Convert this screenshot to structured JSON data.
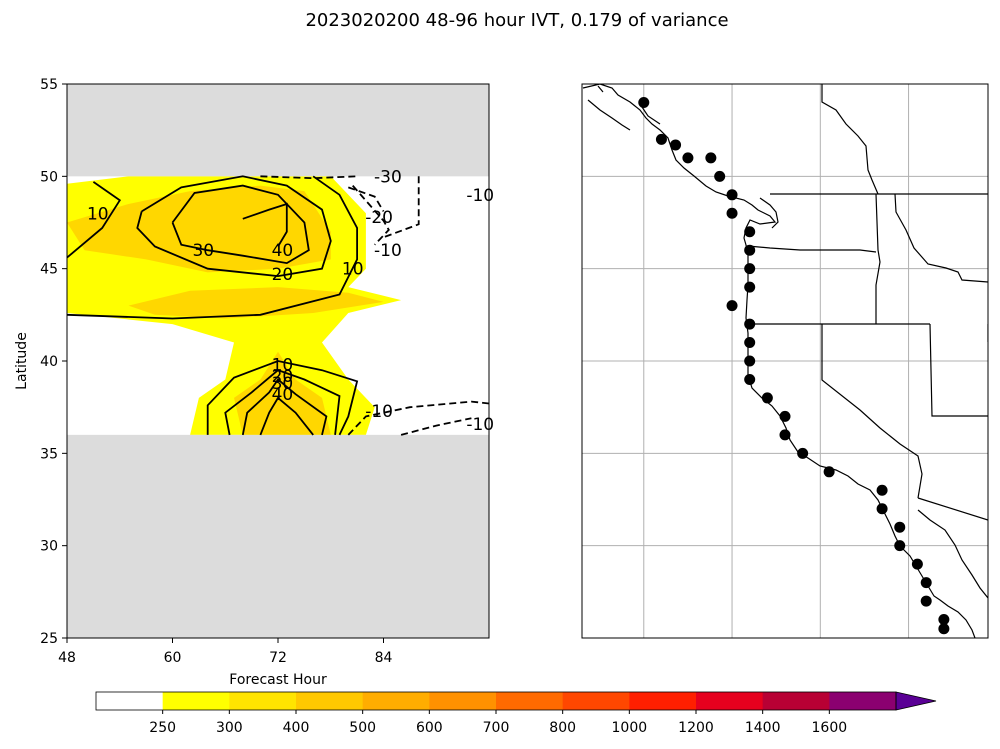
{
  "figure": {
    "suptitle": "2023020200 48-96 hour IVT, 0.179 of variance"
  },
  "chart_data": [
    {
      "type": "contour",
      "panel": "left",
      "xlabel": "Forecast Hour",
      "ylabel": "Latitude",
      "xlim": [
        48,
        96
      ],
      "ylim": [
        25,
        55
      ],
      "xticks": [
        48,
        60,
        72,
        84
      ],
      "yticks": [
        25,
        30,
        35,
        40,
        45,
        50,
        55
      ],
      "masked_lat_ranges": [
        [
          50,
          55
        ],
        [
          25,
          36
        ]
      ],
      "masked_color": "#dcdcdc",
      "filled_regions": [
        {
          "class": 250,
          "color": "#ffff00",
          "points": [
            [
              48,
              49.6
            ],
            [
              55,
              50
            ],
            [
              70,
              50
            ],
            [
              78,
              50
            ],
            [
              82,
              48
            ],
            [
              82,
              45
            ],
            [
              80,
              44
            ],
            [
              86,
              43.3
            ],
            [
              80,
              42.6
            ],
            [
              77,
              41
            ],
            [
              80,
              39
            ],
            [
              83,
              37.5
            ],
            [
              82,
              36
            ],
            [
              62,
              36
            ],
            [
              63,
              38
            ],
            [
              66,
              39
            ],
            [
              67,
              41
            ],
            [
              60,
              42
            ],
            [
              48,
              42.6
            ]
          ]
        },
        {
          "class": 300,
          "color": "#ffd700",
          "points": [
            [
              48,
              47.5
            ],
            [
              55,
              48.5
            ],
            [
              62,
              49.2
            ],
            [
              70,
              49.5
            ],
            [
              75,
              49.2
            ],
            [
              78,
              47
            ],
            [
              78,
              45.5
            ],
            [
              72,
              45
            ],
            [
              64,
              44.8
            ],
            [
              57,
              45.5
            ],
            [
              50,
              46
            ]
          ]
        },
        {
          "class": 300,
          "color": "#ffd700",
          "points": [
            [
              55,
              43
            ],
            [
              62,
              43.8
            ],
            [
              72,
              44
            ],
            [
              80,
              43.7
            ],
            [
              84,
              43.2
            ],
            [
              76,
              42.6
            ],
            [
              66,
              42.3
            ],
            [
              58,
              42.5
            ]
          ]
        },
        {
          "class": 300,
          "color": "#ffd700",
          "points": [
            [
              68,
              36
            ],
            [
              67,
              38
            ],
            [
              70,
              39
            ],
            [
              72,
              40.5
            ],
            [
              74,
              39
            ],
            [
              77,
              38
            ],
            [
              78,
              36
            ]
          ]
        }
      ],
      "contours": [
        {
          "level": 10,
          "style": "solid",
          "label_at": [
            51.5,
            48.0
          ],
          "points": [
            [
              48,
              45.6
            ],
            [
              52,
              47.2
            ],
            [
              54,
              48.7
            ],
            [
              51,
              49.7
            ]
          ]
        },
        {
          "level": 10,
          "style": "solid",
          "points": [
            [
              48,
              42.5
            ],
            [
              60,
              42.3
            ],
            [
              70,
              42.5
            ],
            [
              79,
              43.6
            ],
            [
              81,
              45.5
            ],
            [
              81,
              47.2
            ],
            [
              79,
              49
            ],
            [
              76,
              50
            ]
          ]
        },
        {
          "level": 10,
          "style": "solid",
          "label_at": [
            80.5,
            45.0
          ],
          "points": []
        },
        {
          "level": 20,
          "style": "solid",
          "label_at": [
            72.5,
            44.7
          ],
          "points": [
            [
              56.5,
              48.1
            ],
            [
              61,
              49.4
            ],
            [
              68,
              50
            ],
            [
              73,
              49.5
            ],
            [
              77,
              48.2
            ],
            [
              78,
              46.5
            ],
            [
              77,
              45
            ],
            [
              72,
              44.6
            ],
            [
              64,
              45
            ],
            [
              58,
              46.2
            ],
            [
              56,
              47.2
            ],
            [
              56.5,
              48.1
            ]
          ]
        },
        {
          "level": 30,
          "style": "solid",
          "label_at": [
            63.5,
            46.0
          ],
          "points": [
            [
              60,
              47.5
            ],
            [
              62.5,
              49.1
            ],
            [
              68,
              49.5
            ],
            [
              72,
              49
            ],
            [
              75,
              47.5
            ],
            [
              75.5,
              46
            ],
            [
              73,
              45.3
            ],
            [
              68,
              45.7
            ],
            [
              64,
              46
            ],
            [
              61,
              46.3
            ],
            [
              60,
              47.5
            ]
          ]
        },
        {
          "level": 40,
          "style": "solid",
          "label_at": [
            72.5,
            46.0
          ],
          "points": [
            [
              68,
              47.7
            ],
            [
              71,
              48.2
            ],
            [
              73,
              48.5
            ],
            [
              73,
              47
            ],
            [
              72,
              46.2
            ]
          ]
        },
        {
          "level": 10,
          "style": "solid",
          "label_at": [
            72.5,
            39.8
          ],
          "points": [
            [
              64,
              36
            ],
            [
              64,
              37.6
            ],
            [
              67,
              39.1
            ],
            [
              72,
              40
            ],
            [
              77,
              39.5
            ],
            [
              81,
              38.9
            ],
            [
              80,
              37
            ],
            [
              79,
              36
            ]
          ]
        },
        {
          "level": 20,
          "style": "solid",
          "label_at": [
            72.5,
            39.2
          ],
          "points": [
            [
              66.5,
              36
            ],
            [
              66,
              37.2
            ],
            [
              69,
              38.3
            ],
            [
              72,
              39.5
            ],
            [
              75,
              39
            ],
            [
              79,
              38.1
            ],
            [
              78.5,
              36
            ]
          ]
        },
        {
          "level": 30,
          "style": "solid",
          "label_at": [
            72.5,
            38.8
          ],
          "points": [
            [
              68,
              36
            ],
            [
              68.5,
              37.2
            ],
            [
              71,
              38.3
            ],
            [
              72,
              39
            ],
            [
              74,
              38.2
            ],
            [
              77.5,
              37
            ],
            [
              77,
              36
            ]
          ]
        },
        {
          "level": 40,
          "style": "solid",
          "label_at": [
            72.5,
            38.2
          ],
          "points": [
            [
              70,
              36
            ],
            [
              71,
              37.2
            ],
            [
              72,
              38
            ],
            [
              74,
              37.2
            ],
            [
              76,
              36
            ]
          ]
        },
        {
          "level": -30,
          "style": "dashed",
          "label_at": [
            84.5,
            50.0
          ],
          "points": [
            [
              70,
              50
            ],
            [
              76,
              49.9
            ],
            [
              81,
              50
            ]
          ]
        },
        {
          "level": -20,
          "style": "dashed",
          "label_at": [
            83.5,
            47.8
          ],
          "points": [
            [
              80,
              49.4
            ],
            [
              83,
              48.9
            ],
            [
              84,
              48.1
            ]
          ]
        },
        {
          "level": -10,
          "style": "dashed",
          "label_at": [
            84.5,
            46.0
          ],
          "points": [
            [
              80.5,
              49.5
            ],
            [
              84,
              47.6
            ],
            [
              84.6,
              47.1
            ],
            [
              83,
              46.3
            ]
          ]
        },
        {
          "level": -10,
          "style": "dashed",
          "points": [
            [
              88,
              50
            ],
            [
              88,
              47.4
            ],
            [
              84,
              46.7
            ]
          ]
        },
        {
          "level": -10,
          "style": "dashed",
          "label_at": [
            95.0,
            49.0
          ],
          "points": []
        },
        {
          "level": -10,
          "style": "dashed",
          "label_at": [
            83.5,
            37.3
          ],
          "points": [
            [
              80,
              36
            ],
            [
              82,
              37
            ],
            [
              87,
              37.5
            ],
            [
              94,
              37.8
            ],
            [
              96,
              37.7
            ]
          ]
        },
        {
          "level": -10,
          "style": "dashed",
          "label_at": [
            95.0,
            36.6
          ],
          "points": [
            [
              86,
              36
            ],
            [
              90,
              36.5
            ],
            [
              94,
              36.9
            ]
          ]
        }
      ]
    },
    {
      "type": "map",
      "panel": "right",
      "title": "",
      "lon_range": [
        -133.5,
        -110.5
      ],
      "lat_range": [
        25,
        55
      ],
      "gridline_lons": [
        -130,
        -125,
        -120,
        -115
      ],
      "gridline_lats": [
        50,
        45,
        40,
        35,
        30
      ],
      "points": [
        [
          -130,
          54
        ],
        [
          -129,
          52
        ],
        [
          -128.2,
          51.7
        ],
        [
          -126.2,
          51
        ],
        [
          -127.5,
          51
        ],
        [
          -125.7,
          50
        ],
        [
          -125,
          49
        ],
        [
          -125,
          48
        ],
        [
          -124,
          47
        ],
        [
          -124,
          46
        ],
        [
          -124,
          45
        ],
        [
          -124,
          44
        ],
        [
          -125,
          43
        ],
        [
          -124,
          42
        ],
        [
          -124,
          41
        ],
        [
          -124,
          40
        ],
        [
          -124,
          39
        ],
        [
          -123,
          38
        ],
        [
          -122,
          37
        ],
        [
          -122,
          36
        ],
        [
          -121,
          35
        ],
        [
          -119.5,
          34
        ],
        [
          -116.5,
          33
        ],
        [
          -116.5,
          32
        ],
        [
          -115.5,
          31
        ],
        [
          -115.5,
          30
        ],
        [
          -114.5,
          29
        ],
        [
          -114,
          28
        ],
        [
          -114,
          27
        ],
        [
          -113,
          26
        ],
        [
          -113,
          25.5
        ]
      ]
    }
  ],
  "colorbar": {
    "tick_labels": [
      "250",
      "300",
      "400",
      "500",
      "600",
      "700",
      "800",
      "1000",
      "1200",
      "1400",
      "1600"
    ],
    "colors": [
      "#ffffff",
      "#ffff00",
      "#ffe400",
      "#ffc800",
      "#ffad00",
      "#ff9100",
      "#ff6a00",
      "#ff4700",
      "#ff1f00",
      "#e6001e",
      "#b80034",
      "#8b0070",
      "#5a0095"
    ]
  }
}
